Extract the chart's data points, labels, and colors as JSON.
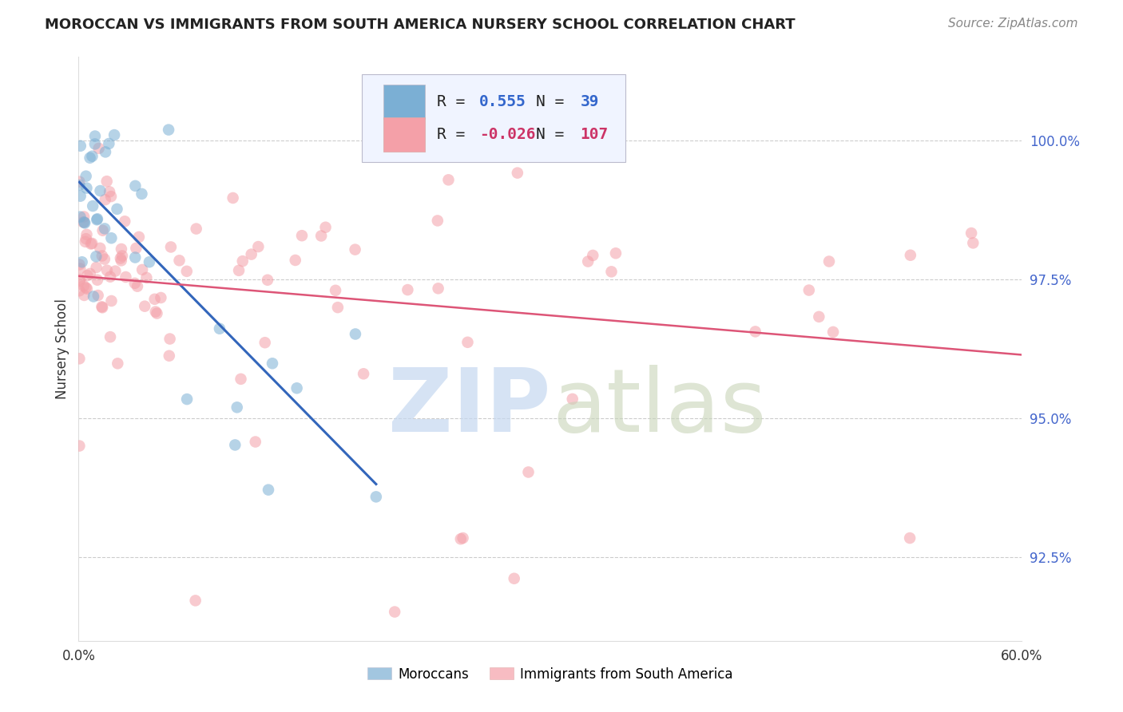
{
  "title": "MOROCCAN VS IMMIGRANTS FROM SOUTH AMERICA NURSERY SCHOOL CORRELATION CHART",
  "source": "Source: ZipAtlas.com",
  "ylabel": "Nursery School",
  "xlim": [
    0.0,
    60.0
  ],
  "ylim": [
    91.0,
    101.5
  ],
  "ytick_positions": [
    92.5,
    95.0,
    97.5,
    100.0
  ],
  "ytick_labels": [
    "92.5%",
    "95.0%",
    "97.5%",
    "100.0%"
  ],
  "blue_R": 0.555,
  "blue_N": 39,
  "pink_R": -0.026,
  "pink_N": 107,
  "blue_color": "#7bafd4",
  "pink_color": "#f4a0a8",
  "blue_line_color": "#3366bb",
  "pink_line_color": "#dd5577",
  "ytick_color": "#4466cc",
  "xtick_color": "#333333",
  "grid_color": "#cccccc",
  "title_color": "#222222",
  "source_color": "#888888",
  "legend_bg": "#f0f4ff",
  "legend_border": "#bbbbcc",
  "legend_text_color": "#222222",
  "legend_value_color": "#3366cc",
  "legend_value_pink": "#cc3366",
  "watermark_zip": "#c5d8f0",
  "watermark_atlas": "#c8d4b8"
}
